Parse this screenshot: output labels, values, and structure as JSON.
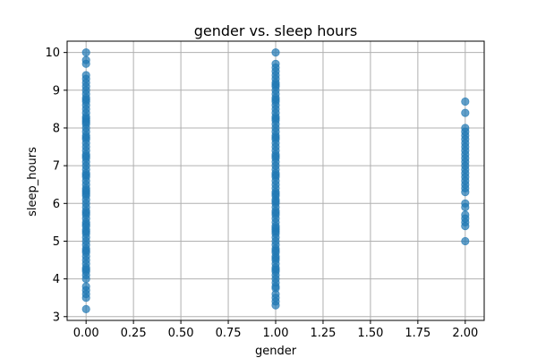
{
  "chart_data": {
    "type": "scatter",
    "title": "gender vs. sleep hours",
    "xlabel": "gender",
    "ylabel": "sleep_hours",
    "xlim": [
      -0.1,
      2.1
    ],
    "ylim": [
      2.9,
      10.3
    ],
    "xticks": [
      0.0,
      0.25,
      0.5,
      0.75,
      1.0,
      1.25,
      1.5,
      1.75,
      2.0
    ],
    "xtick_labels": [
      "0.00",
      "0.25",
      "0.50",
      "0.75",
      "1.00",
      "1.25",
      "1.50",
      "1.75",
      "2.00"
    ],
    "yticks": [
      3,
      4,
      5,
      6,
      7,
      8,
      9,
      10
    ],
    "ytick_labels": [
      "3",
      "4",
      "5",
      "6",
      "7",
      "8",
      "9",
      "10"
    ],
    "grid": true,
    "marker_color": "#1f77b4",
    "marker_alpha": 0.7,
    "series": [
      {
        "x": [
          0,
          0,
          0,
          0,
          0,
          0,
          0,
          0,
          0,
          0,
          0,
          0,
          0,
          0,
          0,
          0,
          0,
          0,
          0,
          0,
          0,
          0,
          0,
          0,
          0,
          0,
          0,
          0,
          0,
          0,
          0,
          0,
          0,
          0,
          0,
          0,
          0,
          0,
          0,
          0,
          0,
          0,
          0,
          0,
          0,
          0,
          0,
          0,
          0,
          0,
          0,
          0,
          0,
          0,
          0,
          0,
          0,
          0,
          0,
          0,
          0,
          0,
          0,
          0,
          0,
          0,
          0,
          0,
          0,
          0,
          0,
          0,
          0,
          0,
          0,
          0
        ],
        "y": [
          10.0,
          9.8,
          9.7,
          9.4,
          9.3,
          9.2,
          9.1,
          9.0,
          8.9,
          8.8,
          8.7,
          8.6,
          8.5,
          8.4,
          8.3,
          8.2,
          8.1,
          8.0,
          7.9,
          7.8,
          7.7,
          7.6,
          7.5,
          7.4,
          7.3,
          7.2,
          7.1,
          7.0,
          6.9,
          6.8,
          6.7,
          6.6,
          6.5,
          6.4,
          6.3,
          6.2,
          6.1,
          6.0,
          5.9,
          5.8,
          5.7,
          5.6,
          5.5,
          5.4,
          5.3,
          5.2,
          5.1,
          5.0,
          4.9,
          4.8,
          4.7,
          4.6,
          4.5,
          4.4,
          4.3,
          4.2,
          4.1,
          4.0,
          3.8,
          3.7,
          3.6,
          3.5,
          3.2,
          8.75,
          8.25,
          7.75,
          7.25,
          6.75,
          6.25,
          5.75,
          5.25,
          4.75,
          4.25,
          8.15,
          6.35,
          5.45
        ]
      },
      {
        "x": [
          1,
          1,
          1,
          1,
          1,
          1,
          1,
          1,
          1,
          1,
          1,
          1,
          1,
          1,
          1,
          1,
          1,
          1,
          1,
          1,
          1,
          1,
          1,
          1,
          1,
          1,
          1,
          1,
          1,
          1,
          1,
          1,
          1,
          1,
          1,
          1,
          1,
          1,
          1,
          1,
          1,
          1,
          1,
          1,
          1,
          1,
          1,
          1,
          1,
          1,
          1,
          1,
          1,
          1,
          1,
          1,
          1,
          1,
          1,
          1,
          1,
          1,
          1,
          1,
          1,
          1,
          1,
          1,
          1,
          1,
          1,
          1,
          1,
          1,
          1,
          1,
          1,
          1,
          1,
          1
        ],
        "y": [
          10.0,
          9.7,
          9.6,
          9.5,
          9.4,
          9.3,
          9.2,
          9.1,
          9.0,
          8.9,
          8.8,
          8.7,
          8.6,
          8.5,
          8.4,
          8.3,
          8.2,
          8.1,
          8.0,
          7.9,
          7.8,
          7.7,
          7.6,
          7.5,
          7.4,
          7.3,
          7.2,
          7.1,
          7.0,
          6.9,
          6.8,
          6.7,
          6.6,
          6.5,
          6.4,
          6.3,
          6.2,
          6.1,
          6.0,
          5.9,
          5.8,
          5.7,
          5.6,
          5.5,
          5.4,
          5.3,
          5.2,
          5.1,
          5.0,
          4.9,
          4.8,
          4.7,
          4.6,
          4.5,
          4.4,
          4.3,
          4.2,
          4.1,
          4.0,
          3.9,
          3.8,
          3.6,
          3.5,
          3.4,
          3.3,
          8.75,
          8.25,
          7.75,
          7.25,
          6.75,
          6.25,
          5.75,
          5.25,
          4.75,
          4.25,
          3.75,
          9.15,
          6.05,
          5.35,
          4.55
        ]
      },
      {
        "x": [
          2,
          2,
          2,
          2,
          2,
          2,
          2,
          2,
          2,
          2,
          2,
          2,
          2,
          2,
          2,
          2,
          2,
          2,
          2,
          2,
          2,
          2,
          2,
          2,
          2,
          2,
          2
        ],
        "y": [
          8.7,
          8.4,
          8.0,
          7.9,
          7.8,
          7.7,
          7.6,
          7.5,
          7.4,
          7.3,
          7.2,
          7.1,
          7.0,
          6.9,
          6.8,
          6.7,
          6.6,
          6.5,
          6.4,
          6.3,
          6.0,
          5.9,
          5.7,
          5.6,
          5.5,
          5.4,
          5.0
        ]
      }
    ]
  }
}
